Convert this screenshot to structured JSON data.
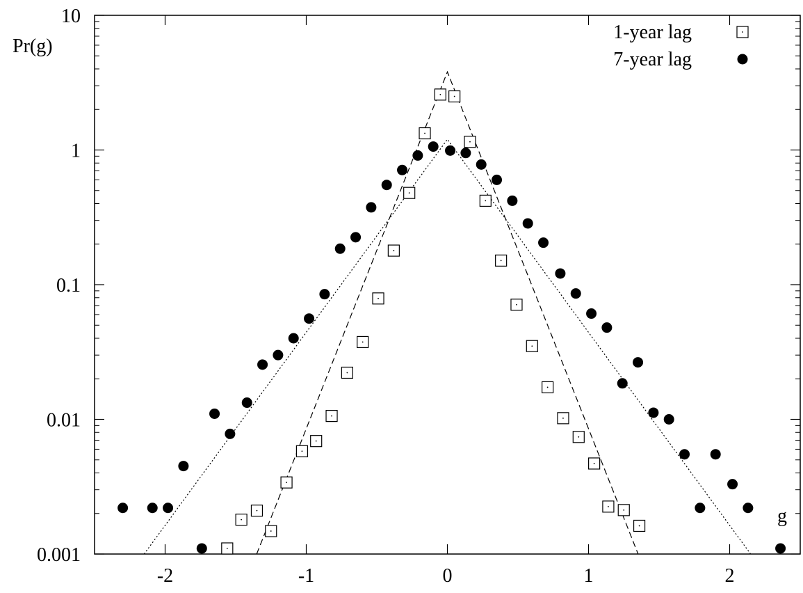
{
  "chart_data": {
    "type": "scatter",
    "title": "",
    "xlabel": "g",
    "ylabel": "Pr(g)",
    "xlim": [
      -2.5,
      2.5
    ],
    "ylim": [
      0.001,
      10
    ],
    "yscale": "log",
    "grid": false,
    "legend_position": "top-right",
    "x_ticks": [
      {
        "value": -2,
        "label": "-2"
      },
      {
        "value": -1,
        "label": "-1"
      },
      {
        "value": 0,
        "label": "0"
      },
      {
        "value": 1,
        "label": "1"
      },
      {
        "value": 2,
        "label": "2"
      }
    ],
    "y_ticks": [
      {
        "value": 0.001,
        "label": "0.001"
      },
      {
        "value": 0.01,
        "label": "0.01"
      },
      {
        "value": 0.1,
        "label": "0.1"
      },
      {
        "value": 1,
        "label": "1"
      },
      {
        "value": 10,
        "label": "10"
      }
    ],
    "series": [
      {
        "name": "1-year lag",
        "marker": "open-square",
        "color": "#000000",
        "points": [
          [
            -1.56,
            0.0011
          ],
          [
            -1.46,
            0.0018
          ],
          [
            -1.35,
            0.0021
          ],
          [
            -1.25,
            0.00148
          ],
          [
            -1.14,
            0.0034
          ],
          [
            -1.03,
            0.0058
          ],
          [
            -0.93,
            0.0069
          ],
          [
            -0.82,
            0.0106
          ],
          [
            -0.71,
            0.0222
          ],
          [
            -0.6,
            0.0375
          ],
          [
            -0.49,
            0.079
          ],
          [
            -0.38,
            0.179
          ],
          [
            -0.27,
            0.48
          ],
          [
            -0.16,
            1.33
          ],
          [
            -0.05,
            2.58
          ],
          [
            0.05,
            2.5
          ],
          [
            0.16,
            1.15
          ],
          [
            0.27,
            0.42
          ],
          [
            0.38,
            0.151
          ],
          [
            0.49,
            0.071
          ],
          [
            0.6,
            0.035
          ],
          [
            0.71,
            0.0173
          ],
          [
            0.82,
            0.0102
          ],
          [
            0.93,
            0.0074
          ],
          [
            1.04,
            0.0047
          ],
          [
            1.14,
            0.00225
          ],
          [
            1.25,
            0.00212
          ],
          [
            1.36,
            0.00162
          ]
        ]
      },
      {
        "name": "7-year lag",
        "marker": "filled-circle",
        "color": "#000000",
        "points": [
          [
            -2.3,
            0.0022
          ],
          [
            -2.09,
            0.0022
          ],
          [
            -1.98,
            0.0022
          ],
          [
            -1.87,
            0.0045
          ],
          [
            -1.74,
            0.0011
          ],
          [
            -1.65,
            0.011
          ],
          [
            -1.54,
            0.0078
          ],
          [
            -1.42,
            0.0133
          ],
          [
            -1.31,
            0.0255
          ],
          [
            -1.2,
            0.03
          ],
          [
            -1.09,
            0.04
          ],
          [
            -0.98,
            0.056
          ],
          [
            -0.87,
            0.085
          ],
          [
            -0.76,
            0.185
          ],
          [
            -0.65,
            0.225
          ],
          [
            -0.54,
            0.375
          ],
          [
            -0.43,
            0.55
          ],
          [
            -0.32,
            0.71
          ],
          [
            -0.21,
            0.91
          ],
          [
            -0.1,
            1.06
          ],
          [
            0.02,
            0.99
          ],
          [
            0.13,
            0.95
          ],
          [
            0.24,
            0.78
          ],
          [
            0.35,
            0.6
          ],
          [
            0.46,
            0.42
          ],
          [
            0.57,
            0.285
          ],
          [
            0.68,
            0.205
          ],
          [
            0.8,
            0.121
          ],
          [
            0.91,
            0.086
          ],
          [
            1.02,
            0.061
          ],
          [
            1.13,
            0.048
          ],
          [
            1.24,
            0.0185
          ],
          [
            1.35,
            0.0265
          ],
          [
            1.46,
            0.0112
          ],
          [
            1.57,
            0.01
          ],
          [
            1.68,
            0.0055
          ],
          [
            1.79,
            0.0022
          ],
          [
            1.9,
            0.0055
          ],
          [
            2.02,
            0.0033
          ],
          [
            2.13,
            0.0022
          ],
          [
            2.36,
            0.0011
          ]
        ]
      }
    ],
    "fit_lines": [
      {
        "style": "dashed",
        "peak": 3.8,
        "slope": 6.1
      },
      {
        "style": "dotted",
        "peak": 1.2,
        "slope": 3.3
      }
    ]
  }
}
